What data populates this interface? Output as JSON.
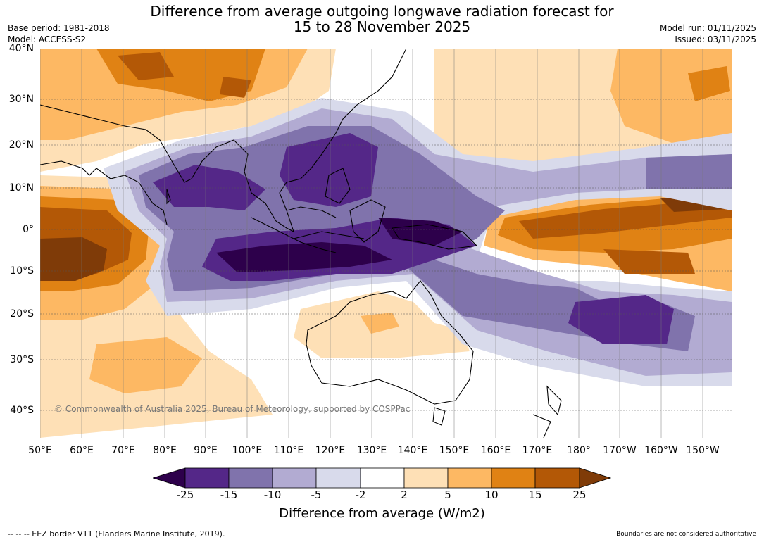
{
  "header": {
    "title_line1": "Difference from average outgoing longwave radiation forecast for",
    "title_line2": "15 to 28 November 2025",
    "base_period": "Base period: 1981-2018",
    "model": "Model: ACCESS-S2",
    "model_run": "Model run: 01/11/2025",
    "issued": "Issued: 03/11/2025"
  },
  "map": {
    "lat_labels": [
      "40°N",
      "30°N",
      "20°N",
      "10°N",
      "0°",
      "10°S",
      "20°S",
      "30°S",
      "40°S"
    ],
    "lon_labels": [
      "50°E",
      "60°E",
      "70°E",
      "80°E",
      "90°E",
      "100°E",
      "110°E",
      "120°E",
      "130°E",
      "140°E",
      "150°E",
      "160°E",
      "170°E",
      "180°",
      "170°W",
      "160°W",
      "150°W"
    ],
    "copyright": "© Commonwealth of Australia 2025, Bureau of Meteorology, supported by COSPPac",
    "land_color": "#000000"
  },
  "colorbar": {
    "label": "Difference from average (W/m2)",
    "ticks": [
      "-25",
      "-15",
      "-10",
      "-5",
      "-2",
      "2",
      "5",
      "10",
      "15",
      "25"
    ],
    "colors": [
      "#2d004b",
      "#542788",
      "#8073ac",
      "#b2abd2",
      "#d8daeb",
      "#ffffff",
      "#fee0b6",
      "#fdb863",
      "#e08214",
      "#b35806",
      "#7f3b08"
    ]
  },
  "footer": {
    "eez_note": "--  --  -- EEZ border V11 (Flanders Marine Institute, 2019).",
    "boundaries_note": "Boundaries are not considered authoritative"
  }
}
